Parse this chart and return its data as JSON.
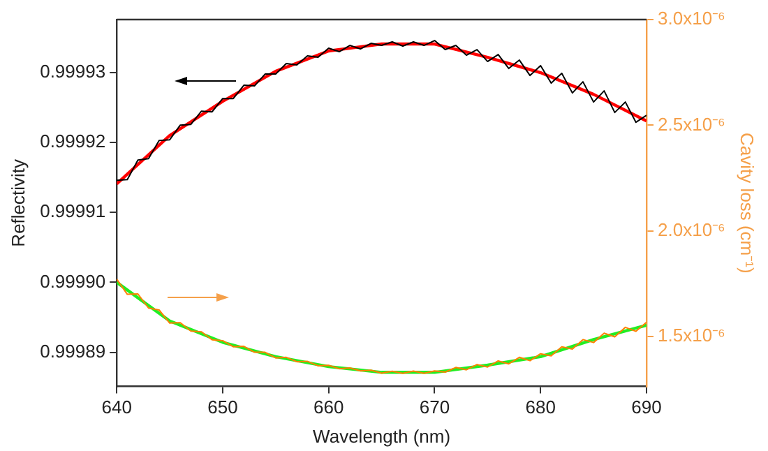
{
  "chart_data": {
    "type": "line",
    "xlabel": "Wavelength (nm)",
    "ylabel": "Reflectivity",
    "y2label": "Cavity loss (cm⁻¹)",
    "x": [
      640,
      641,
      642,
      643,
      644,
      645,
      646,
      647,
      648,
      649,
      650,
      651,
      652,
      653,
      654,
      655,
      656,
      657,
      658,
      659,
      660,
      661,
      662,
      663,
      664,
      665,
      666,
      667,
      668,
      669,
      670,
      671,
      672,
      673,
      674,
      675,
      676,
      677,
      678,
      679,
      680,
      681,
      682,
      683,
      684,
      685,
      686,
      687,
      688,
      689,
      690
    ],
    "series": [
      {
        "color": "#000000",
        "values": [
          0.9999146,
          0.9999147,
          0.9999175,
          0.9999177,
          0.9999203,
          0.9999204,
          0.9999225,
          0.9999226,
          0.9999245,
          0.9999244,
          0.9999263,
          0.9999263,
          0.9999282,
          0.9999281,
          0.9999298,
          0.9999298,
          0.9999313,
          0.9999311,
          0.9999324,
          0.9999322,
          0.9999335,
          0.999933,
          0.9999339,
          0.9999334,
          0.9999342,
          0.9999339,
          0.9999344,
          0.9999338,
          0.9999344,
          0.9999339,
          0.9999346,
          0.9999333,
          0.9999339,
          0.9999325,
          0.9999333,
          0.9999316,
          0.9999326,
          0.9999306,
          0.9999318,
          0.9999296,
          0.999931,
          0.9999285,
          0.9999299,
          0.9999271,
          0.9999287,
          0.9999258,
          0.9999274,
          0.9999243,
          0.9999258,
          0.9999229,
          0.9999239
        ]
      },
      {
        "color": "#ff0000",
        "x": [
          640,
          645,
          650,
          655,
          660,
          665,
          670,
          675,
          680,
          685,
          690
        ],
        "values": [
          0.9999141,
          0.999921,
          0.9999259,
          0.9999302,
          0.9999331,
          0.9999341,
          0.9999341,
          0.9999322,
          0.99993,
          0.9999269,
          0.9999231
        ]
      },
      {
        "color": "#ff8000",
        "axis": "y2",
        "values": [
          1.772e-06,
          1.7e-06,
          1.702e-06,
          1.635e-06,
          1.626e-06,
          1.564e-06,
          1.566e-06,
          1.526e-06,
          1.523e-06,
          1.485e-06,
          1.481e-06,
          1.452e-06,
          1.454e-06,
          1.426e-06,
          1.426e-06,
          1.399e-06,
          1.402e-06,
          1.381e-06,
          1.383e-06,
          1.362e-06,
          1.364e-06,
          1.348e-06,
          1.352e-06,
          1.338e-06,
          1.341e-06,
          1.327e-06,
          1.336e-06,
          1.326e-06,
          1.337e-06,
          1.326e-06,
          1.338e-06,
          1.332e-06,
          1.354e-06,
          1.343e-06,
          1.368e-06,
          1.356e-06,
          1.385e-06,
          1.371e-06,
          1.402e-06,
          1.386e-06,
          1.419e-06,
          1.409e-06,
          1.452e-06,
          1.441e-06,
          1.486e-06,
          1.472e-06,
          1.516e-06,
          1.499e-06,
          1.544e-06,
          1.525e-06,
          1.568e-06
        ]
      },
      {
        "color": "#22ee22",
        "axis": "y2",
        "x": [
          640,
          645,
          650,
          655,
          660,
          665,
          670,
          675,
          680,
          685,
          690
        ],
        "values": [
          1.757e-06,
          1.574e-06,
          1.473e-06,
          1.405e-06,
          1.358e-06,
          1.331e-06,
          1.331e-06,
          1.365e-06,
          1.405e-06,
          1.486e-06,
          1.554e-06
        ]
      }
    ],
    "xlim": [
      640,
      690
    ],
    "xticks": [
      640,
      650,
      660,
      670,
      680,
      690
    ],
    "ylim": [
      0.9998851,
      0.9999376
    ],
    "yticks": [
      0.99989,
      {
        "value": 0.9999,
        "label": "0.99990"
      },
      0.99991,
      0.99992,
      0.99993
    ],
    "y2lim": [
      1.264e-06,
      3e-06
    ],
    "y2ticks": [
      {
        "value": 1.5e-06,
        "label": "1.5x10⁻⁶"
      },
      {
        "value": 2e-06,
        "label": "2.0x10⁻⁶"
      },
      {
        "value": 2.5e-06,
        "label": "2.5x10⁻⁶"
      },
      {
        "value": 3e-06,
        "label": "3.0x10⁻⁶"
      }
    ],
    "grid": false,
    "legend": false,
    "marker": "none",
    "line_style": "solid"
  }
}
